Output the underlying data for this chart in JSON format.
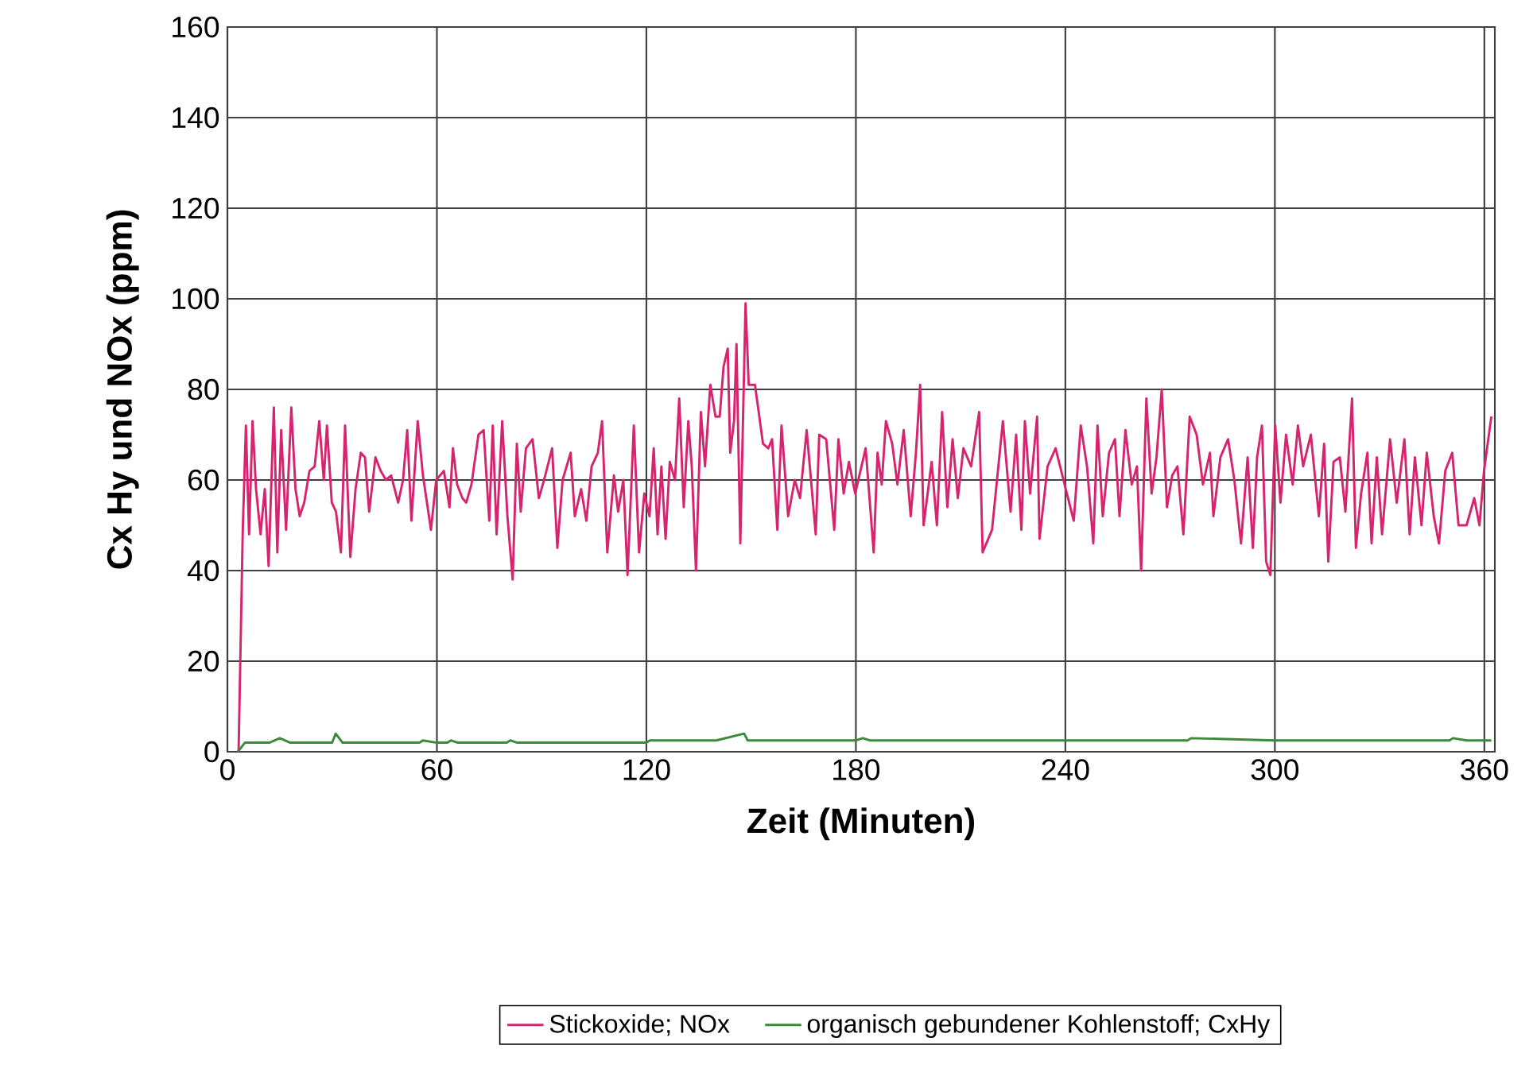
{
  "chart_data": {
    "type": "line",
    "xlabel": "Zeit (Minuten)",
    "ylabel": "Cx Hy und NOx (ppm)",
    "xlim": [
      0,
      363
    ],
    "ylim": [
      0,
      160
    ],
    "xticks": [
      0,
      60,
      120,
      180,
      240,
      300,
      360
    ],
    "yticks": [
      0,
      20,
      40,
      60,
      80,
      100,
      120,
      140,
      160
    ],
    "grid": true,
    "legend": "bottom",
    "marker": "none",
    "line_style": "solid",
    "series": [
      {
        "name": "Stickoxide; NOx",
        "color": "#d6246e",
        "x": [
          3.2,
          4.4,
          5.3,
          6.2,
          7.2,
          8.2,
          9.5,
          10.7,
          11.8,
          13.3,
          14.3,
          15.4,
          16.8,
          18.3,
          19.5,
          20.7,
          22,
          23.5,
          25,
          26.3,
          27.6,
          28.5,
          29.9,
          31.1,
          32.5,
          33.7,
          35.2,
          36.7,
          38.2,
          39.4,
          40.6,
          42.4,
          43.9,
          45.4,
          46.9,
          48.9,
          50.3,
          51.5,
          52.7,
          54.5,
          56,
          58.3,
          59.8,
          62,
          63.6,
          64.6,
          65.8,
          67.3,
          68.4,
          69.9,
          71.9,
          73.4,
          74.1,
          75,
          76,
          77.1,
          78.7,
          80.2,
          81.7,
          82.9,
          84,
          85.5,
          87.4,
          89.2,
          90.7,
          93,
          94.5,
          96,
          98.3,
          99.5,
          101.3,
          102.8,
          104.3,
          106.1,
          107.3,
          108.8,
          110.7,
          111.9,
          113.4,
          114.6,
          116.4,
          117.9,
          119.4,
          120.9,
          122.1,
          123.2,
          124.3,
          125.5,
          126.7,
          128.2,
          129.4,
          130.7,
          132,
          133,
          134.2,
          135.6,
          136.8,
          138.3,
          139.8,
          141,
          142.1,
          143.3,
          144,
          145.1,
          145.8,
          146.9,
          148.4,
          149.3,
          151.1,
          153.4,
          154.9,
          156,
          157.5,
          158.7,
          160.6,
          162.5,
          164,
          165.9,
          168.5,
          169.5,
          171.5,
          173.8,
          175,
          176.5,
          178,
          179.8,
          182.8,
          185.1,
          186.2,
          187.4,
          188.6,
          190.4,
          191.9,
          193.7,
          195.7,
          197.2,
          198.4,
          199.4,
          201.7,
          203.2,
          204.7,
          206.2,
          207.7,
          209.2,
          210.8,
          213,
          215.3,
          216.3,
          219,
          222.1,
          224.3,
          225.9,
          227.4,
          228.4,
          229.9,
          231.9,
          232.6,
          234.9,
          237.2,
          240.1,
          242.4,
          244.4,
          246.2,
          248,
          249.2,
          250.7,
          252.5,
          254.2,
          255.5,
          257.2,
          259,
          260.5,
          261.7,
          263.2,
          264.7,
          266.1,
          267.6,
          269.1,
          270.6,
          272.1,
          273.8,
          275.6,
          277.6,
          279.4,
          281.4,
          282.4,
          284.4,
          286.6,
          288.4,
          290.3,
          292.2,
          293.7,
          294.9,
          296.3,
          297.5,
          298.7,
          300.1,
          301.6,
          303.2,
          305.1,
          306.6,
          308.1,
          310.3,
          312.6,
          314.1,
          315.3,
          316.8,
          318.6,
          320.2,
          322.1,
          323.2,
          324.7,
          326.5,
          327.7,
          329.2,
          330.7,
          333,
          334.9,
          337.1,
          338.6,
          340.1,
          342,
          343.5,
          345.5,
          347,
          348.8,
          350.8,
          352.6,
          354.9,
          357.1,
          358.6,
          359.9,
          362
        ],
        "values": [
          0,
          49,
          72,
          48,
          73,
          58,
          48,
          58,
          41,
          76,
          44,
          71,
          49,
          76,
          58,
          52,
          55,
          62,
          63,
          73,
          60,
          72,
          55,
          53,
          44,
          72,
          43,
          58,
          66,
          65,
          53,
          65,
          62,
          60,
          61,
          55,
          60,
          71,
          51,
          73,
          61,
          49,
          60,
          62,
          54,
          67,
          59,
          56,
          55,
          59,
          70,
          71,
          62,
          51,
          72,
          48,
          73,
          52,
          38,
          68,
          53,
          67,
          69,
          56,
          60,
          67,
          45,
          60,
          66,
          52,
          58,
          51,
          63,
          66,
          73,
          44,
          61,
          53,
          60,
          39,
          72,
          44,
          57,
          52,
          67,
          48,
          63,
          47,
          64,
          60,
          78,
          54,
          73,
          63,
          40,
          75,
          63,
          81,
          74,
          74,
          85,
          89,
          66,
          73,
          90,
          46,
          99,
          81,
          81,
          68,
          67,
          69,
          49,
          72,
          52,
          60,
          56,
          71,
          48,
          70,
          69,
          49,
          69,
          57,
          64,
          57,
          67,
          44,
          66,
          59,
          73,
          68,
          59,
          71,
          52,
          66,
          81,
          50,
          64,
          50,
          75,
          54,
          69,
          56,
          67,
          63,
          75,
          44,
          49,
          73,
          53,
          70,
          49,
          73,
          57,
          74,
          47,
          63,
          67,
          58,
          51,
          72,
          63,
          46,
          72,
          52,
          66,
          69,
          52,
          71,
          59,
          63,
          40,
          78,
          57,
          65,
          80,
          54,
          61,
          63,
          48,
          74,
          70,
          59,
          66,
          52,
          65,
          69,
          60,
          46,
          65,
          45,
          65,
          72,
          42,
          39,
          72,
          55,
          70,
          59,
          72,
          63,
          70,
          52,
          68,
          42,
          64,
          65,
          53,
          78,
          45,
          57,
          66,
          46,
          65,
          48,
          69,
          55,
          69,
          48,
          65,
          50,
          66,
          52,
          46,
          62,
          66,
          50,
          50,
          56,
          50,
          62,
          74
        ]
      },
      {
        "name": "organisch gebundener Kohlenstoff; CxHy",
        "color": "#3a8a3a",
        "x": [
          3,
          5,
          12,
          15,
          18,
          22,
          30,
          31,
          33,
          40,
          55,
          56,
          60,
          63,
          64,
          66,
          80,
          81,
          83,
          100,
          120,
          121,
          140,
          148,
          149,
          152,
          180,
          182,
          184,
          240,
          275,
          276,
          300,
          350,
          351,
          355,
          362
        ],
        "values": [
          0,
          2,
          2,
          3,
          2,
          2,
          2,
          4,
          2,
          2,
          2,
          2.5,
          2,
          2,
          2.5,
          2,
          2,
          2.5,
          2,
          2,
          2,
          2.5,
          2.5,
          4,
          2.5,
          2.5,
          2.5,
          3,
          2.5,
          2.5,
          2.5,
          3,
          2.5,
          2.5,
          3,
          2.5,
          2.5
        ]
      }
    ]
  }
}
